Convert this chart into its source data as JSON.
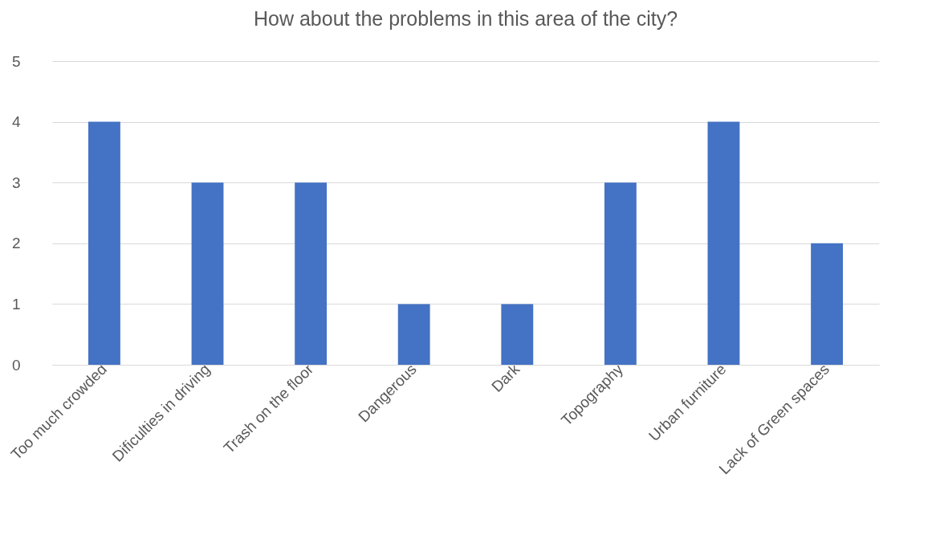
{
  "chart_data": {
    "type": "bar",
    "title": "How about the problems in this area of the city?",
    "categories": [
      "Too much crowded",
      "Dificulties in driving",
      "Trash on the floor",
      "Dangerous",
      "Dark",
      "Topography",
      "Urban furniture",
      "Lack of Green spaces"
    ],
    "values": [
      4,
      3,
      3,
      1,
      1,
      3,
      4,
      2
    ],
    "color": "#4472c4",
    "ylim": [
      0,
      5
    ],
    "yticks": [
      0,
      1,
      2,
      3,
      4,
      5
    ],
    "grid": "y"
  }
}
